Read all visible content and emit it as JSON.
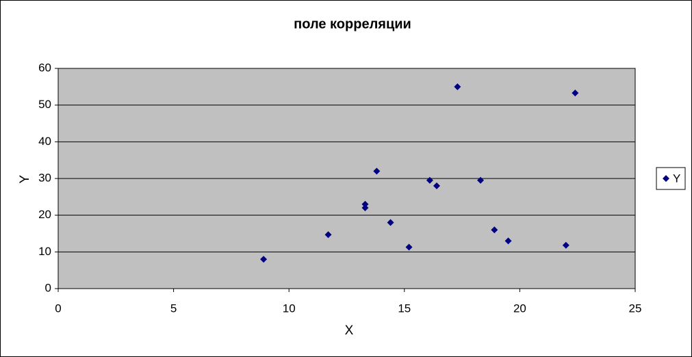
{
  "chart_data": {
    "type": "scatter",
    "title": "поле корреляции",
    "x_label": "X",
    "y_label": "Y",
    "series": [
      {
        "name": "Y",
        "color": "#000080",
        "x": [
          8.9,
          11.7,
          13.3,
          13.3,
          13.8,
          14.4,
          15.2,
          16.1,
          16.4,
          17.3,
          18.3,
          18.9,
          19.5,
          22.0,
          22.4
        ],
        "values": [
          8,
          14.7,
          23,
          22,
          32,
          18,
          11.3,
          29.5,
          28,
          55,
          29.5,
          16,
          13,
          11.8,
          53.3
        ]
      }
    ],
    "xlim": [
      0,
      25
    ],
    "ylim": [
      0,
      60
    ],
    "xticks": [
      0,
      5,
      10,
      15,
      20,
      25
    ],
    "yticks": [
      0,
      10,
      20,
      30,
      40,
      50,
      60
    ],
    "grid": true,
    "plot_background": "#c0c0c0",
    "legend_position": "right"
  }
}
